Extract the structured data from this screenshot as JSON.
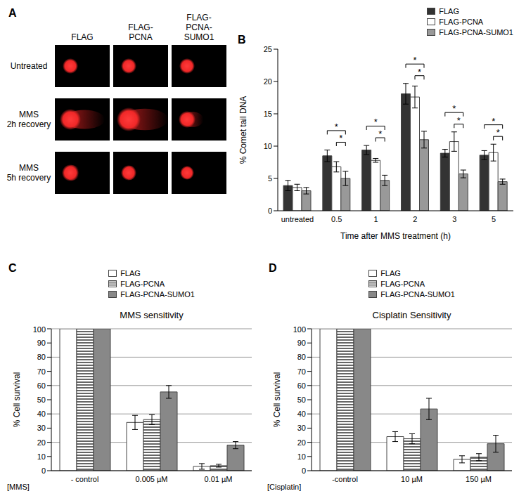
{
  "panel_a": {
    "panel": "A",
    "columns": [
      [
        "FLAG"
      ],
      [
        "FLAG-",
        "PCNA"
      ],
      [
        "FLAG-",
        "PCNA-SUMO1"
      ]
    ],
    "rows": [
      [
        "Untreated"
      ],
      [
        "MMS",
        "2h recovery"
      ],
      [
        "MMS",
        "5h recovery"
      ]
    ]
  },
  "chart_data": [
    {
      "panel": "B",
      "type": "bar",
      "categories": [
        "untreated",
        "0.5",
        "1",
        "2",
        "3",
        "5"
      ],
      "x_label": "Time after MMS treatment (h)",
      "y_label": "% Comet tail DNA",
      "ylim": [
        0,
        25
      ],
      "yticks": [
        0,
        5,
        10,
        15,
        20,
        25
      ],
      "legend": "top-right",
      "series": [
        {
          "name": "FLAG",
          "color": "#333333",
          "values": [
            3.9,
            8.5,
            9.4,
            18.1,
            8.9,
            8.6
          ],
          "errors": [
            0.8,
            0.9,
            0.7,
            1.6,
            0.6,
            0.7
          ]
        },
        {
          "name": "FLAG-PCNA",
          "color": "#ffffff",
          "values": [
            3.6,
            6.8,
            7.8,
            17.6,
            10.7,
            9.0
          ],
          "errors": [
            0.5,
            0.8,
            0.3,
            1.7,
            1.5,
            1.3
          ]
        },
        {
          "name": "FLAG-PCNA-SUMO1",
          "color": "#999999",
          "values": [
            3.1,
            5.0,
            4.7,
            11.0,
            5.7,
            4.5
          ],
          "errors": [
            0.5,
            1.1,
            0.8,
            1.3,
            0.6,
            0.4
          ]
        }
      ],
      "significance": [
        {
          "category": "0.5",
          "from": "FLAG",
          "to": "FLAG-PCNA-SUMO1",
          "text": "*"
        },
        {
          "category": "0.5",
          "from": "FLAG-PCNA",
          "to": "FLAG-PCNA-SUMO1",
          "text": "*"
        },
        {
          "category": "1",
          "from": "FLAG",
          "to": "FLAG-PCNA-SUMO1",
          "text": "*"
        },
        {
          "category": "1",
          "from": "FLAG-PCNA",
          "to": "FLAG-PCNA-SUMO1",
          "text": "*"
        },
        {
          "category": "2",
          "from": "FLAG",
          "to": "FLAG-PCNA-SUMO1",
          "text": "*"
        },
        {
          "category": "2",
          "from": "FLAG-PCNA",
          "to": "FLAG-PCNA-SUMO1",
          "text": "*"
        },
        {
          "category": "3",
          "from": "FLAG",
          "to": "FLAG-PCNA-SUMO1",
          "text": "*"
        },
        {
          "category": "3",
          "from": "FLAG-PCNA",
          "to": "FLAG-PCNA-SUMO1",
          "text": "*"
        },
        {
          "category": "5",
          "from": "FLAG",
          "to": "FLAG-PCNA-SUMO1",
          "text": "*"
        },
        {
          "category": "5",
          "from": "FLAG-PCNA",
          "to": "FLAG-PCNA-SUMO1",
          "text": "*"
        }
      ]
    },
    {
      "panel": "C",
      "type": "bar",
      "title": "MMS sensitivity",
      "categories": [
        "- control",
        "0.005 µM",
        "0.01 µM"
      ],
      "x_label": "[MMS]",
      "y_label": "% Cell survival",
      "ylim": [
        0,
        100
      ],
      "yticks": [
        0,
        10,
        20,
        30,
        40,
        50,
        60,
        70,
        80,
        90,
        100
      ],
      "grid": true,
      "legend": "top",
      "series": [
        {
          "name": "FLAG",
          "color": "#ffffff",
          "values": [
            100,
            34,
            3
          ],
          "errors": [
            null,
            5,
            2
          ]
        },
        {
          "name": "FLAG-PCNA",
          "color": "#666666",
          "values": [
            100,
            36,
            3.5
          ],
          "errors": [
            null,
            3.5,
            1
          ]
        },
        {
          "name": "FLAG-PCNA-SUMO1",
          "color": "#888888",
          "values": [
            100,
            55.5,
            18
          ],
          "errors": [
            null,
            4.5,
            2.5
          ]
        }
      ]
    },
    {
      "panel": "D",
      "type": "bar",
      "title": "Cisplatin Sensitivity",
      "categories": [
        "-control",
        "10 µM",
        "150 µM"
      ],
      "x_label": "[Cisplatin]",
      "y_label": "% Cell survival",
      "ylim": [
        0,
        100
      ],
      "yticks": [
        0,
        10,
        20,
        30,
        40,
        50,
        60,
        70,
        80,
        90,
        100
      ],
      "grid": true,
      "legend": "top",
      "series": [
        {
          "name": "FLAG",
          "color": "#ffffff",
          "values": [
            100,
            24,
            8
          ],
          "errors": [
            null,
            3.5,
            2.5
          ]
        },
        {
          "name": "FLAG-PCNA",
          "color": "#666666",
          "values": [
            100,
            22.5,
            9.5
          ],
          "errors": [
            null,
            3.5,
            2.5
          ]
        },
        {
          "name": "FLAG-PCNA-SUMO1",
          "color": "#888888",
          "values": [
            100,
            43.5,
            19
          ],
          "errors": [
            null,
            7.5,
            6
          ]
        }
      ]
    }
  ]
}
